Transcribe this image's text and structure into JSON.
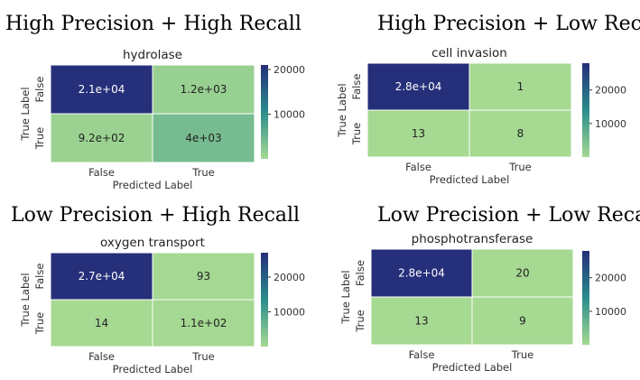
{
  "colors": {
    "low": "#a6d992",
    "mid": "#2a8c8c",
    "high": "#252f7a",
    "cell_text_dark": "#ffffff",
    "cell_text_light": "#222222"
  },
  "chart_data": [
    {
      "type": "heatmap",
      "heading": "High Precision + High Recall",
      "title": "hydrolase",
      "xlabel": "Predicted Label",
      "ylabel": "True Label",
      "x_categories": [
        "False",
        "True"
      ],
      "y_categories": [
        "False",
        "True"
      ],
      "values": [
        [
          21000,
          1200
        ],
        [
          920,
          4000
        ]
      ],
      "cell_labels": [
        [
          "2.1e+04",
          "1.2e+03"
        ],
        [
          "9.2e+02",
          "4e+03"
        ]
      ],
      "colorbar": {
        "range": [
          0,
          21000
        ],
        "ticks": [
          10000,
          20000
        ],
        "tick_labels": [
          "10000",
          "20000"
        ]
      }
    },
    {
      "type": "heatmap",
      "heading": "High Precision + Low Recall",
      "title": "cell invasion",
      "xlabel": "Predicted Label",
      "ylabel": "True Label",
      "x_categories": [
        "False",
        "True"
      ],
      "y_categories": [
        "False",
        "True"
      ],
      "values": [
        [
          28000,
          1
        ],
        [
          13,
          8
        ]
      ],
      "cell_labels": [
        [
          "2.8e+04",
          "1"
        ],
        [
          "13",
          "8"
        ]
      ],
      "colorbar": {
        "range": [
          0,
          28000
        ],
        "ticks": [
          10000,
          20000
        ],
        "tick_labels": [
          "10000",
          "20000"
        ]
      }
    },
    {
      "type": "heatmap",
      "heading": "Low Precision + High Recall",
      "title": "oxygen transport",
      "xlabel": "Predicted Label",
      "ylabel": "True Label",
      "x_categories": [
        "False",
        "True"
      ],
      "y_categories": [
        "False",
        "True"
      ],
      "values": [
        [
          27000,
          93
        ],
        [
          14,
          110
        ]
      ],
      "cell_labels": [
        [
          "2.7e+04",
          "93"
        ],
        [
          "14",
          "1.1e+02"
        ]
      ],
      "colorbar": {
        "range": [
          0,
          27000
        ],
        "ticks": [
          10000,
          20000
        ],
        "tick_labels": [
          "10000",
          "20000"
        ]
      }
    },
    {
      "type": "heatmap",
      "heading": "Low Precision + Low Recall",
      "title": "phosphotransferase",
      "xlabel": "Predicted Label",
      "ylabel": "True Label",
      "x_categories": [
        "False",
        "True"
      ],
      "y_categories": [
        "False",
        "True"
      ],
      "values": [
        [
          28000,
          20
        ],
        [
          13,
          9
        ]
      ],
      "cell_labels": [
        [
          "2.8e+04",
          "20"
        ],
        [
          "13",
          "9"
        ]
      ],
      "colorbar": {
        "range": [
          0,
          28000
        ],
        "ticks": [
          10000,
          20000
        ],
        "tick_labels": [
          "10000",
          "20000"
        ]
      }
    }
  ]
}
